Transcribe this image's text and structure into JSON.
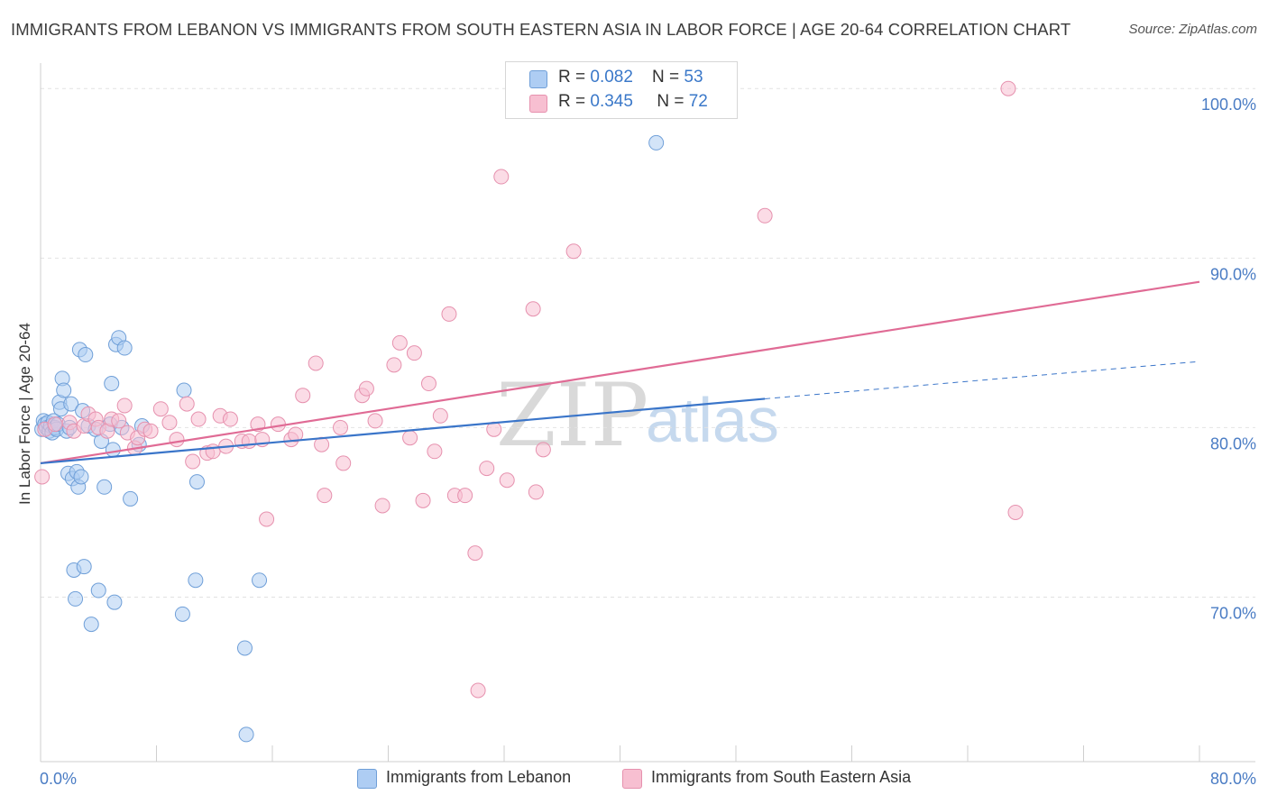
{
  "title": "IMMIGRANTS FROM LEBANON VS IMMIGRANTS FROM SOUTH EASTERN ASIA IN LABOR FORCE | AGE 20-64 CORRELATION CHART",
  "source": "Source: ZipAtlas.com",
  "watermark": {
    "zip": "ZIP",
    "atlas": "atlas"
  },
  "colors": {
    "blue_fill": "#aecdf3",
    "blue_stroke": "#6f9fd8",
    "blue_line": "#3a75c9",
    "pink_fill": "#f7bfd1",
    "pink_stroke": "#e691ae",
    "pink_line": "#e06b95",
    "tick_label": "#4a7cc4",
    "grid": "#e2e2e2"
  },
  "stats": [
    {
      "r_label": "R = ",
      "r_value": "0.082",
      "n_label": "N = ",
      "n_value": "53",
      "series": "blue"
    },
    {
      "r_label": "R = ",
      "r_value": "0.345",
      "n_label": "N = ",
      "n_value": "72",
      "series": "pink"
    }
  ],
  "chart_data": {
    "type": "scatter",
    "title": "IMMIGRANTS FROM LEBANON VS IMMIGRANTS FROM SOUTH EASTERN ASIA IN LABOR FORCE | AGE 20-64 CORRELATION CHART",
    "xlabel": "",
    "ylabel": "In Labor Force | Age 20-64",
    "xlim": [
      0,
      80
    ],
    "ylim": [
      60.3,
      101.5
    ],
    "x_tick_labels": [
      {
        "value": 0,
        "label": "0.0%"
      },
      {
        "value": 80,
        "label": "80.0%"
      }
    ],
    "y_tick_labels": [
      {
        "value": 70,
        "label": "70.0%"
      },
      {
        "value": 80,
        "label": "80.0%"
      },
      {
        "value": 90,
        "label": "90.0%"
      },
      {
        "value": 100,
        "label": "100.0%"
      }
    ],
    "x_minor_ticks": [
      8,
      16,
      24,
      32,
      40,
      48,
      56,
      64,
      72,
      80
    ],
    "grid": true,
    "legend_position": "bottom-center",
    "series": [
      {
        "name": "Immigrants from Lebanon",
        "color": "blue",
        "trend": {
          "x0": 0,
          "y0": 77.9,
          "x1": 50,
          "y1": 81.7,
          "dashed_to_x": 80,
          "dashed_to_y": 83.9
        },
        "points": [
          [
            0.1,
            79.9
          ],
          [
            0.2,
            80.4
          ],
          [
            0.3,
            80.2
          ],
          [
            0.4,
            80.0
          ],
          [
            0.5,
            80.3
          ],
          [
            0.6,
            79.8
          ],
          [
            0.7,
            80.1
          ],
          [
            0.8,
            79.7
          ],
          [
            0.9,
            80.4
          ],
          [
            1.0,
            80.0
          ],
          [
            1.1,
            79.9
          ],
          [
            1.2,
            80.2
          ],
          [
            1.3,
            81.5
          ],
          [
            1.4,
            81.1
          ],
          [
            1.5,
            82.9
          ],
          [
            1.6,
            82.2
          ],
          [
            1.8,
            79.8
          ],
          [
            1.9,
            77.3
          ],
          [
            2.0,
            80.0
          ],
          [
            2.1,
            81.4
          ],
          [
            2.2,
            77.0
          ],
          [
            2.3,
            71.6
          ],
          [
            2.4,
            69.9
          ],
          [
            2.5,
            77.4
          ],
          [
            2.6,
            76.5
          ],
          [
            2.7,
            84.6
          ],
          [
            2.8,
            77.1
          ],
          [
            2.9,
            81.0
          ],
          [
            3.0,
            71.8
          ],
          [
            3.1,
            84.3
          ],
          [
            3.3,
            80.1
          ],
          [
            3.5,
            68.4
          ],
          [
            3.8,
            79.9
          ],
          [
            4.0,
            70.4
          ],
          [
            4.2,
            79.2
          ],
          [
            4.4,
            76.5
          ],
          [
            4.8,
            80.2
          ],
          [
            4.9,
            82.6
          ],
          [
            5.0,
            78.7
          ],
          [
            5.1,
            69.7
          ],
          [
            5.2,
            84.9
          ],
          [
            5.4,
            85.3
          ],
          [
            5.8,
            84.7
          ],
          [
            5.6,
            80.0
          ],
          [
            6.2,
            75.8
          ],
          [
            6.8,
            79.0
          ],
          [
            7.0,
            80.1
          ],
          [
            9.8,
            69.0
          ],
          [
            9.9,
            82.2
          ],
          [
            10.7,
            71.0
          ],
          [
            10.8,
            76.8
          ],
          [
            14.1,
            67.0
          ],
          [
            14.2,
            61.9
          ],
          [
            15.1,
            71.0
          ],
          [
            42.5,
            96.8
          ]
        ]
      },
      {
        "name": "Immigrants from South Eastern Asia",
        "color": "pink",
        "trend": {
          "x0": 0,
          "y0": 77.9,
          "x1": 80,
          "y1": 88.6
        },
        "points": [
          [
            0.1,
            77.1
          ],
          [
            0.3,
            79.9
          ],
          [
            1.0,
            80.2
          ],
          [
            2.0,
            80.3
          ],
          [
            2.3,
            79.8
          ],
          [
            3.0,
            80.1
          ],
          [
            3.3,
            80.8
          ],
          [
            3.8,
            80.5
          ],
          [
            4.0,
            80.0
          ],
          [
            4.6,
            79.8
          ],
          [
            4.9,
            80.5
          ],
          [
            5.4,
            80.4
          ],
          [
            5.8,
            81.3
          ],
          [
            6.0,
            79.7
          ],
          [
            6.5,
            78.8
          ],
          [
            6.7,
            79.4
          ],
          [
            7.2,
            79.9
          ],
          [
            7.6,
            79.8
          ],
          [
            8.3,
            81.1
          ],
          [
            8.9,
            80.3
          ],
          [
            9.4,
            79.3
          ],
          [
            10.1,
            81.4
          ],
          [
            10.5,
            78.0
          ],
          [
            10.9,
            80.5
          ],
          [
            11.5,
            78.5
          ],
          [
            11.9,
            78.6
          ],
          [
            12.4,
            80.7
          ],
          [
            12.8,
            78.9
          ],
          [
            13.1,
            80.5
          ],
          [
            13.9,
            79.2
          ],
          [
            14.4,
            79.2
          ],
          [
            15.0,
            80.2
          ],
          [
            15.3,
            79.3
          ],
          [
            15.6,
            74.6
          ],
          [
            16.4,
            80.2
          ],
          [
            17.3,
            79.3
          ],
          [
            17.6,
            79.6
          ],
          [
            18.1,
            81.9
          ],
          [
            19.0,
            83.8
          ],
          [
            19.4,
            79.0
          ],
          [
            19.6,
            76.0
          ],
          [
            20.7,
            80.0
          ],
          [
            20.9,
            77.9
          ],
          [
            22.2,
            81.9
          ],
          [
            22.5,
            82.3
          ],
          [
            23.1,
            80.4
          ],
          [
            23.6,
            75.4
          ],
          [
            24.4,
            83.7
          ],
          [
            24.8,
            85.0
          ],
          [
            25.5,
            79.4
          ],
          [
            25.8,
            84.4
          ],
          [
            26.4,
            75.7
          ],
          [
            26.8,
            82.6
          ],
          [
            27.2,
            78.6
          ],
          [
            27.6,
            80.7
          ],
          [
            28.2,
            86.7
          ],
          [
            28.6,
            76.0
          ],
          [
            29.3,
            76.0
          ],
          [
            30.0,
            72.6
          ],
          [
            30.2,
            64.5
          ],
          [
            30.8,
            77.6
          ],
          [
            31.3,
            79.9
          ],
          [
            31.8,
            94.8
          ],
          [
            32.2,
            76.9
          ],
          [
            34.0,
            87.0
          ],
          [
            34.2,
            76.2
          ],
          [
            34.7,
            78.7
          ],
          [
            36.8,
            90.4
          ],
          [
            43.3,
            100.0
          ],
          [
            50.0,
            92.5
          ],
          [
            66.8,
            100.0
          ],
          [
            67.3,
            75.0
          ]
        ]
      }
    ]
  }
}
